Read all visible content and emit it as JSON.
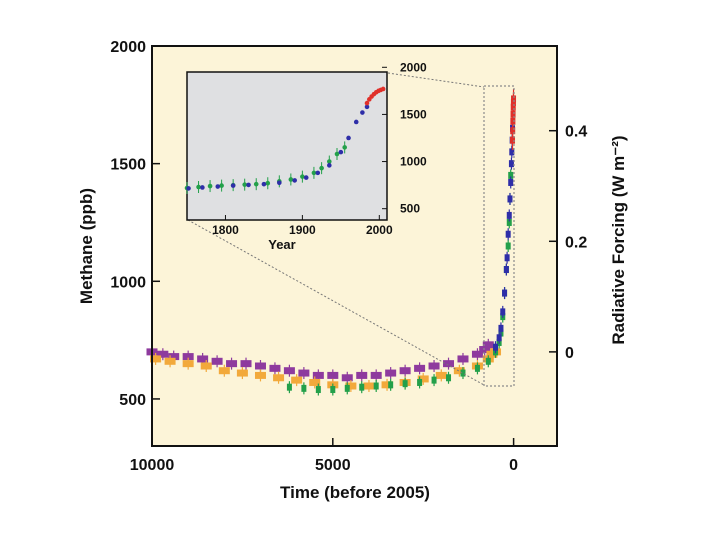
{
  "chart_data": {
    "type": "scatter",
    "title": "",
    "xlabel": "Time (before 2005)",
    "ylabel": "Methane (ppb)",
    "y2label": "Radiative Forcing (W m⁻²)",
    "xlim": [
      10000,
      -1200
    ],
    "ylim": [
      300,
      2000
    ],
    "x_ticks": [
      10000,
      5000,
      0
    ],
    "y_ticks": [
      500,
      1000,
      1500,
      2000
    ],
    "y2_ticks": [
      {
        "label": "0",
        "methane": 700
      },
      {
        "label": "0.2",
        "methane": 1170
      },
      {
        "label": "0.4",
        "methane": 1640
      }
    ],
    "colors": {
      "background": "#fcf4d8",
      "inset_background": "#dfe0e2",
      "highlight_box": "#c8c9cb",
      "purple": "#8e3a9e",
      "orange": "#f2a93b",
      "green": "#23a04a",
      "blue": "#2e2ea8",
      "red": "#e0302a"
    },
    "series": [
      {
        "name": "purple",
        "color": "#8e3a9e",
        "x": [
          10000,
          9700,
          9400,
          9000,
          8600,
          8200,
          7800,
          7400,
          7000,
          6600,
          6200,
          5800,
          5400,
          5000,
          4600,
          4200,
          3800,
          3400,
          3000,
          2600,
          2200,
          1800,
          1400,
          1000,
          800,
          700
        ],
        "y": [
          700,
          690,
          680,
          680,
          670,
          660,
          650,
          650,
          640,
          630,
          620,
          610,
          600,
          600,
          590,
          600,
          600,
          610,
          620,
          630,
          640,
          650,
          670,
          690,
          710,
          730
        ]
      },
      {
        "name": "orange",
        "color": "#f2a93b",
        "x": [
          9900,
          9500,
          9000,
          8500,
          8000,
          7500,
          7000,
          6500,
          6000,
          5500,
          5000,
          4500,
          4000,
          3500,
          3000,
          2500,
          2000,
          1500,
          1000,
          700,
          600,
          500
        ],
        "y": [
          670,
          660,
          650,
          640,
          620,
          610,
          600,
          590,
          580,
          570,
          560,
          555,
          555,
          560,
          570,
          585,
          600,
          620,
          640,
          670,
          690,
          700
        ]
      },
      {
        "name": "green",
        "color": "#23a04a",
        "x": [
          6200,
          5800,
          5400,
          5000,
          4600,
          4200,
          3800,
          3400,
          3000,
          2600,
          2200,
          1800,
          1400,
          1000,
          700,
          500,
          400,
          350,
          300,
          250,
          200,
          150,
          120,
          100,
          80
        ],
        "y": [
          550,
          545,
          540,
          540,
          545,
          550,
          555,
          560,
          565,
          570,
          580,
          590,
          610,
          630,
          660,
          700,
          740,
          780,
          850,
          950,
          1050,
          1150,
          1250,
          1350,
          1450
        ]
      },
      {
        "name": "blue",
        "color": "#2e2ea8",
        "x": [
          500,
          400,
          350,
          300,
          250,
          200,
          180,
          150,
          120,
          100,
          80,
          60,
          50,
          40,
          30
        ],
        "y": [
          720,
          760,
          800,
          870,
          950,
          1050,
          1100,
          1200,
          1280,
          1350,
          1420,
          1500,
          1550,
          1600,
          1650
        ]
      },
      {
        "name": "red",
        "color": "#e0302a",
        "x": [
          30,
          25,
          20,
          15,
          10,
          5,
          2
        ],
        "y": [
          1600,
          1640,
          1680,
          1710,
          1740,
          1760,
          1775
        ]
      }
    ],
    "inset": {
      "xlabel": "Year",
      "x_ticks": [
        1800,
        1900,
        2000
      ],
      "y_ticks": [
        500,
        1000,
        1500,
        2000
      ],
      "xlim": [
        1750,
        2010
      ],
      "ylim": [
        380,
        1950
      ],
      "series": [
        {
          "name": "green",
          "color": "#23a04a",
          "x": [
            1750,
            1765,
            1780,
            1795,
            1810,
            1825,
            1840,
            1855,
            1870,
            1885,
            1900,
            1915,
            1925,
            1935,
            1945,
            1955
          ],
          "y": [
            720,
            730,
            740,
            745,
            750,
            755,
            760,
            770,
            790,
            810,
            840,
            880,
            930,
            1000,
            1080,
            1150
          ]
        },
        {
          "name": "blue",
          "color": "#2e2ea8",
          "x": [
            1752,
            1770,
            1790,
            1810,
            1830,
            1850,
            1870,
            1890,
            1905,
            1920,
            1935,
            1950,
            1960,
            1970,
            1978,
            1984
          ],
          "y": [
            715,
            725,
            735,
            745,
            752,
            760,
            775,
            800,
            830,
            880,
            960,
            1100,
            1250,
            1420,
            1520,
            1580
          ]
        },
        {
          "name": "red",
          "color": "#e0302a",
          "x": [
            1984,
            1987,
            1990,
            1993,
            1996,
            1999,
            2002,
            2005
          ],
          "y": [
            1620,
            1660,
            1690,
            1715,
            1735,
            1750,
            1760,
            1770
          ]
        }
      ]
    }
  }
}
